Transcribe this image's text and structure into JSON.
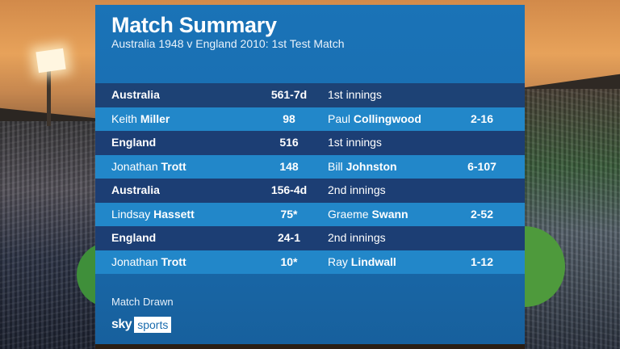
{
  "title": "Match Summary",
  "subtitle": "Australia 1948 v England 2010:  1st Test Match",
  "rows": [
    {
      "type": "team",
      "name": "Australia",
      "score": "561-7d",
      "innings": "1st innings",
      "figures": ""
    },
    {
      "type": "player",
      "first": "Keith",
      "last": "Miller",
      "score": "98",
      "bowler_first": "Paul",
      "bowler_last": "Collingwood",
      "figures": "2-16"
    },
    {
      "type": "team",
      "name": "England",
      "score": "516",
      "innings": "1st innings",
      "figures": ""
    },
    {
      "type": "player",
      "first": "Jonathan",
      "last": "Trott",
      "score": "148",
      "bowler_first": "Bill",
      "bowler_last": "Johnston",
      "figures": "6-107"
    },
    {
      "type": "team",
      "name": "Australia",
      "score": "156-4d",
      "innings": "2nd innings",
      "figures": ""
    },
    {
      "type": "player",
      "first": "Lindsay",
      "last": "Hassett",
      "score": "75*",
      "bowler_first": "Graeme",
      "bowler_last": "Swann",
      "figures": "2-52"
    },
    {
      "type": "team",
      "name": "England",
      "score": "24-1",
      "innings": "2nd innings",
      "figures": ""
    },
    {
      "type": "player",
      "first": "Jonathan",
      "last": "Trott",
      "score": "10*",
      "bowler_first": "Ray",
      "bowler_last": "Lindwall",
      "figures": "1-12"
    }
  ],
  "result": "Match Drawn",
  "logo": {
    "sky": "sky",
    "sports": "sports"
  },
  "colors": {
    "panel": "#1a6cae",
    "team_row": "#1c3e74",
    "player_row": "#2287c9"
  }
}
